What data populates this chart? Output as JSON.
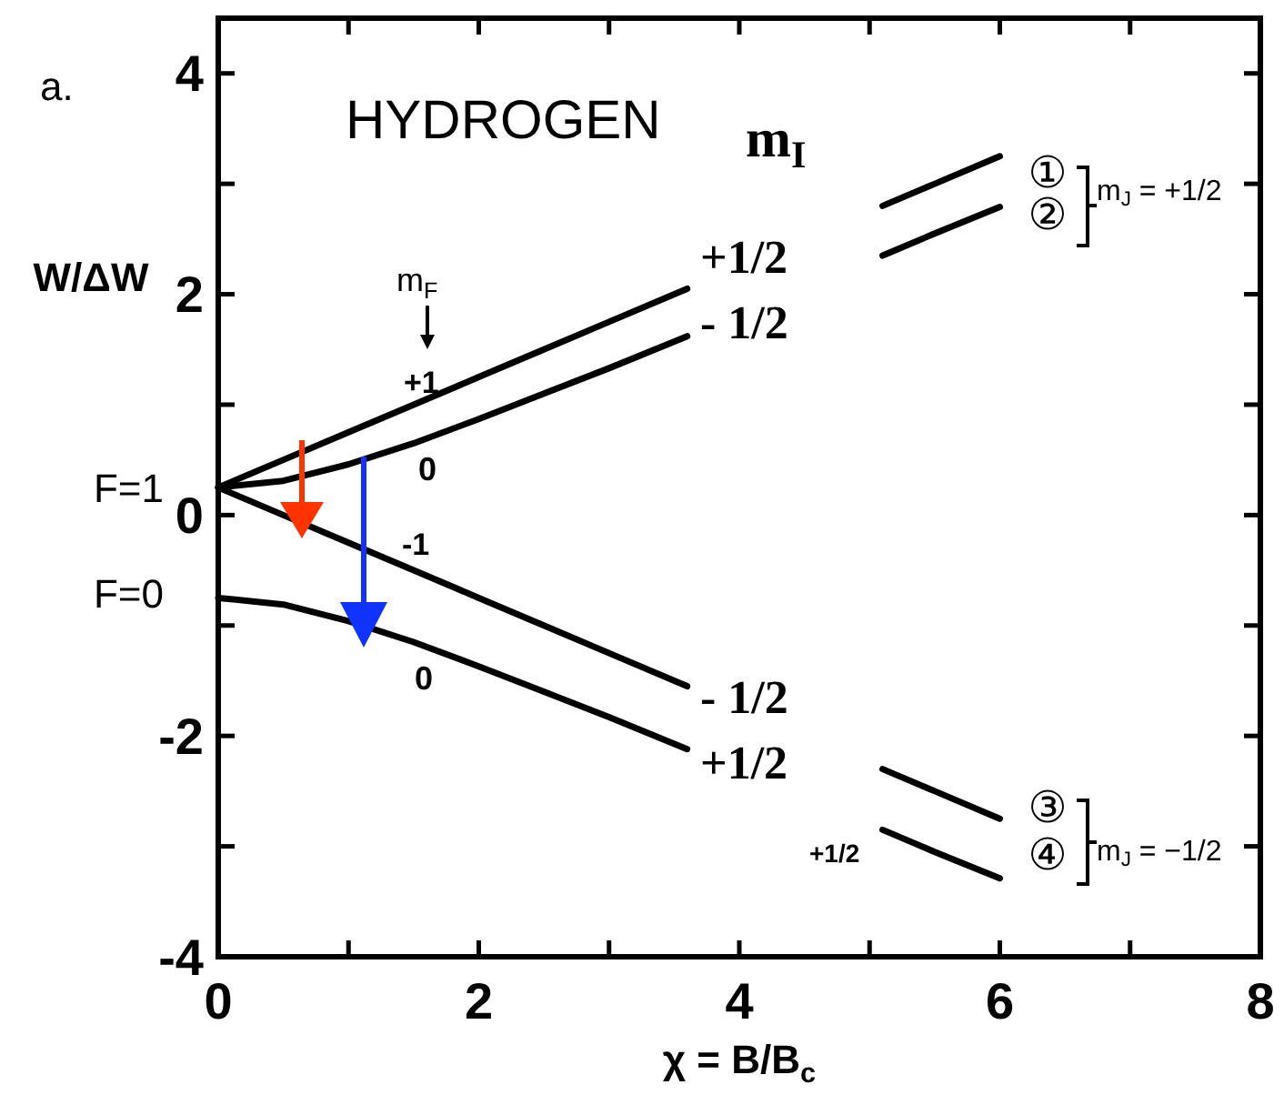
{
  "chart_data": {
    "type": "line",
    "xlabel": "χ = B/B$_{c}$",
    "ylabel": "W/ΔW",
    "x": [
      0,
      0.5,
      1,
      1.5,
      2,
      2.5,
      3,
      3.6,
      4.3,
      5.1,
      5.5,
      6
    ],
    "series": [
      {
        "color": "#000000",
        "values": [
          0.25,
          0.5,
          0.75,
          1,
          1.25,
          1.5,
          1.75,
          2.05,
          null,
          2.8,
          3,
          3.25
        ]
      },
      {
        "color": "#000000",
        "values": [
          0.25,
          0.31,
          0.46,
          0.65,
          0.87,
          1.1,
          1.33,
          1.62,
          null,
          2.35,
          2.55,
          2.79
        ]
      },
      {
        "color": "#000000",
        "values": [
          0.25,
          0,
          -0.25,
          -0.5,
          -0.75,
          -1,
          -1.25,
          -1.55,
          null,
          -2.3,
          -2.5,
          -2.75
        ]
      },
      {
        "color": "#000000",
        "values": [
          -0.75,
          -0.81,
          -0.96,
          -1.15,
          -1.37,
          -1.6,
          -1.83,
          -2.12,
          null,
          -2.85,
          -3.05,
          -3.29
        ]
      }
    ],
    "xlim": [
      0,
      8
    ],
    "ylim": [
      -4,
      4.5
    ],
    "xticks": [
      0,
      {
        "value": 1,
        "label": null
      },
      2,
      {
        "value": 3,
        "label": null
      },
      4,
      {
        "value": 5,
        "label": null
      },
      6,
      {
        "value": 7,
        "label": null
      },
      8
    ],
    "yticks": [
      -4,
      {
        "value": -3,
        "label": null
      },
      -2,
      {
        "value": -1,
        "label": null
      },
      0,
      {
        "value": 1,
        "label": null
      },
      2,
      {
        "value": 3,
        "label": null
      },
      4
    ],
    "grid": false,
    "marker": "none",
    "line_style": "solid",
    "annotations": [
      "a.",
      "HYDROGEN",
      "m$_{I}$",
      "+1/2",
      "- 1/2",
      "- 1/2",
      "+1/2",
      "m$_{F}$",
      "+1",
      "0",
      "-1",
      "0",
      "+1/2",
      "①",
      "②",
      "③",
      "④",
      "m$_{J}$ = +1/2",
      "m$_{J}$ = −1/2",
      "F=1",
      "F=0"
    ]
  }
}
